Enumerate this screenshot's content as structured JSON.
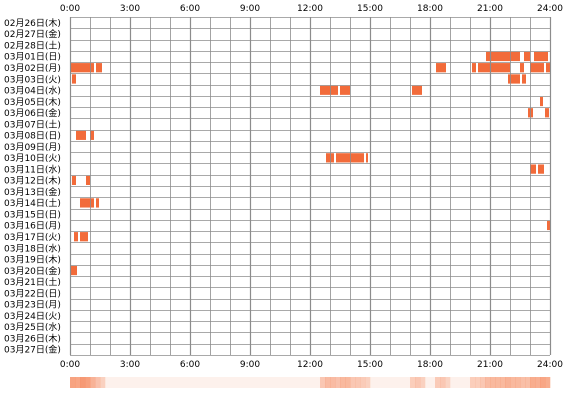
{
  "chart_data": {
    "type": "heatmap",
    "x_axis": {
      "range_hours": [
        0,
        24
      ],
      "tick_labels": [
        "0:00",
        "3:00",
        "6:00",
        "9:00",
        "12:00",
        "15:00",
        "18:00",
        "21:00",
        "24:00"
      ],
      "minor_grid_hours": 1,
      "major_grid_hours": 3
    },
    "rows": [
      {
        "label": "02月26日(木)",
        "activity": []
      },
      {
        "label": "02月27日(金)",
        "activity": []
      },
      {
        "label": "02月28日(土)",
        "activity": []
      },
      {
        "label": "03月01日(日)",
        "activity": [
          [
            20.8,
            22.5
          ],
          [
            22.7,
            23.0
          ],
          [
            23.2,
            23.9
          ]
        ]
      },
      {
        "label": "03月02日(月)",
        "activity": [
          [
            0.0,
            1.2
          ],
          [
            1.3,
            1.6
          ],
          [
            18.3,
            18.8
          ],
          [
            20.1,
            20.3
          ],
          [
            20.4,
            22.0
          ],
          [
            22.5,
            22.7
          ],
          [
            23.0,
            23.7
          ],
          [
            23.8,
            24.0
          ]
        ]
      },
      {
        "label": "03月03日(火)",
        "activity": [
          [
            0.1,
            0.3
          ],
          [
            21.9,
            22.5
          ],
          [
            22.6,
            22.8
          ]
        ]
      },
      {
        "label": "03月04日(水)",
        "activity": [
          [
            12.5,
            13.4
          ],
          [
            13.5,
            14.0
          ],
          [
            17.1,
            17.6
          ]
        ]
      },
      {
        "label": "03月05日(木)",
        "activity": [
          [
            23.5,
            23.65
          ]
        ]
      },
      {
        "label": "03月06日(金)",
        "activity": [
          [
            22.9,
            23.15
          ],
          [
            23.75,
            23.95
          ]
        ]
      },
      {
        "label": "03月07日(土)",
        "activity": []
      },
      {
        "label": "03月08日(日)",
        "activity": [
          [
            0.3,
            0.8
          ],
          [
            1.0,
            1.2
          ]
        ]
      },
      {
        "label": "03月09日(月)",
        "activity": []
      },
      {
        "label": "03月10日(火)",
        "activity": [
          [
            12.8,
            13.2
          ],
          [
            13.3,
            14.7
          ],
          [
            14.8,
            14.9
          ]
        ]
      },
      {
        "label": "03月11日(水)",
        "activity": [
          [
            23.0,
            23.3
          ],
          [
            23.4,
            23.7
          ]
        ]
      },
      {
        "label": "03月12日(木)",
        "activity": [
          [
            0.1,
            0.3
          ],
          [
            0.8,
            1.0
          ]
        ]
      },
      {
        "label": "03月13日(金)",
        "activity": []
      },
      {
        "label": "03月14日(土)",
        "activity": [
          [
            0.5,
            1.2
          ],
          [
            1.3,
            1.45
          ]
        ]
      },
      {
        "label": "03月15日(日)",
        "activity": []
      },
      {
        "label": "03月16日(月)",
        "activity": [
          [
            23.85,
            24.0
          ]
        ]
      },
      {
        "label": "03月17日(火)",
        "activity": [
          [
            0.2,
            0.4
          ],
          [
            0.5,
            0.9
          ]
        ]
      },
      {
        "label": "03月18日(水)",
        "activity": []
      },
      {
        "label": "03月19日(木)",
        "activity": []
      },
      {
        "label": "03月20日(金)",
        "activity": [
          [
            0.0,
            0.35
          ]
        ]
      },
      {
        "label": "03月21日(土)",
        "activity": []
      },
      {
        "label": "03月22日(日)",
        "activity": []
      },
      {
        "label": "03月23日(月)",
        "activity": []
      },
      {
        "label": "03月24日(火)",
        "activity": []
      },
      {
        "label": "03月25日(水)",
        "activity": []
      },
      {
        "label": "03月26日(木)",
        "activity": []
      },
      {
        "label": "03月27日(金)",
        "activity": []
      }
    ],
    "grid": true,
    "colors": {
      "activity": "#f26b3a",
      "activity_light": "#f7a27e",
      "grid": "#8c8c8c",
      "density": "#f58a5f"
    }
  }
}
